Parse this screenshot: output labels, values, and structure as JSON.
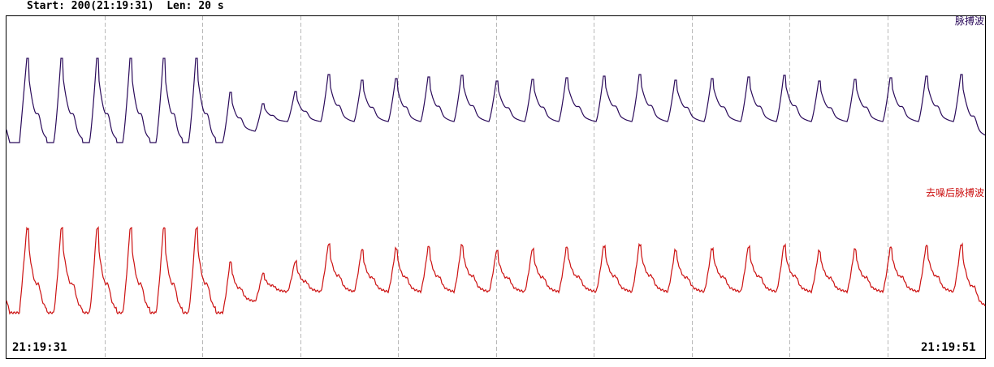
{
  "header": {
    "start_label": "Start:",
    "start_value": "200(21:19:31)",
    "len_label": "Len:",
    "len_value": "20 s"
  },
  "channels": [
    {
      "name": "脉搏波",
      "color": "#2a0a5a"
    },
    {
      "name": "去噪后脉搏波",
      "color": "#cc1111"
    }
  ],
  "time_axis": {
    "start": "21:19:31",
    "end": "21:19:51",
    "gridlines_per_window": 9,
    "duration_s": 20
  },
  "grid_color": "#b8b8b8"
}
